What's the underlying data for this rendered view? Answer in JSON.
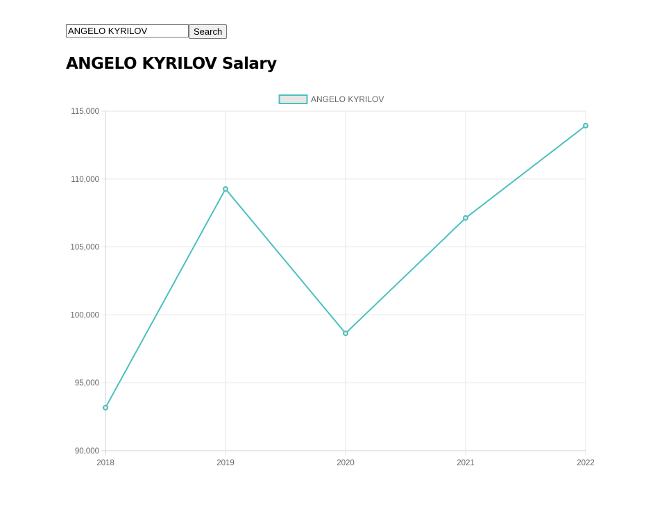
{
  "search": {
    "value": "ANGELO KYRILOV",
    "button_label": "Search"
  },
  "page_title": "ANGELO KYRILOV Salary",
  "chart_data": {
    "type": "line",
    "categories": [
      "2018",
      "2019",
      "2020",
      "2021",
      "2022"
    ],
    "series": [
      {
        "name": "ANGELO KYRILOV",
        "values": [
          93170,
          109270,
          98640,
          107130,
          113930
        ],
        "color": "#4bc0c0",
        "fill": "#e6e6e6"
      }
    ],
    "ylim": [
      90000,
      115000
    ],
    "yticks": [
      "90,000",
      "95,000",
      "100,000",
      "105,000",
      "110,000",
      "115,000"
    ],
    "grid": true,
    "legend": "top-center"
  }
}
